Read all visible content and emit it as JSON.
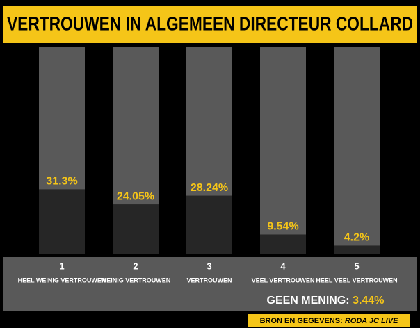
{
  "chart_data": {
    "type": "bar",
    "title": "VERTROUWEN IN ALGEMEEN DIRECTEUR COLLARD",
    "categories": [
      "1",
      "2",
      "3",
      "4",
      "5"
    ],
    "category_labels": [
      "HEEL WEINIG VERTROUWEN",
      "WEINIG VERTROUWEN",
      "VERTROUWEN",
      "VEEL VERTROUWEN",
      "HEEL VEEL VERTROUWEN"
    ],
    "values": [
      31.3,
      24.05,
      28.24,
      9.54,
      4.2
    ],
    "value_labels": [
      "31.3%",
      "24.05%",
      "28.24%",
      "9.54%",
      "4.2%"
    ],
    "color": "#262626",
    "track_color": "#595959",
    "label_color": "#f5c518",
    "ylim": [
      0,
      100
    ],
    "annotation_label": "GEEN MENING:",
    "annotation_value": "3.44%",
    "source_label": "BRON EN GEGEVENS:",
    "source": "RODA JC LIVE"
  }
}
